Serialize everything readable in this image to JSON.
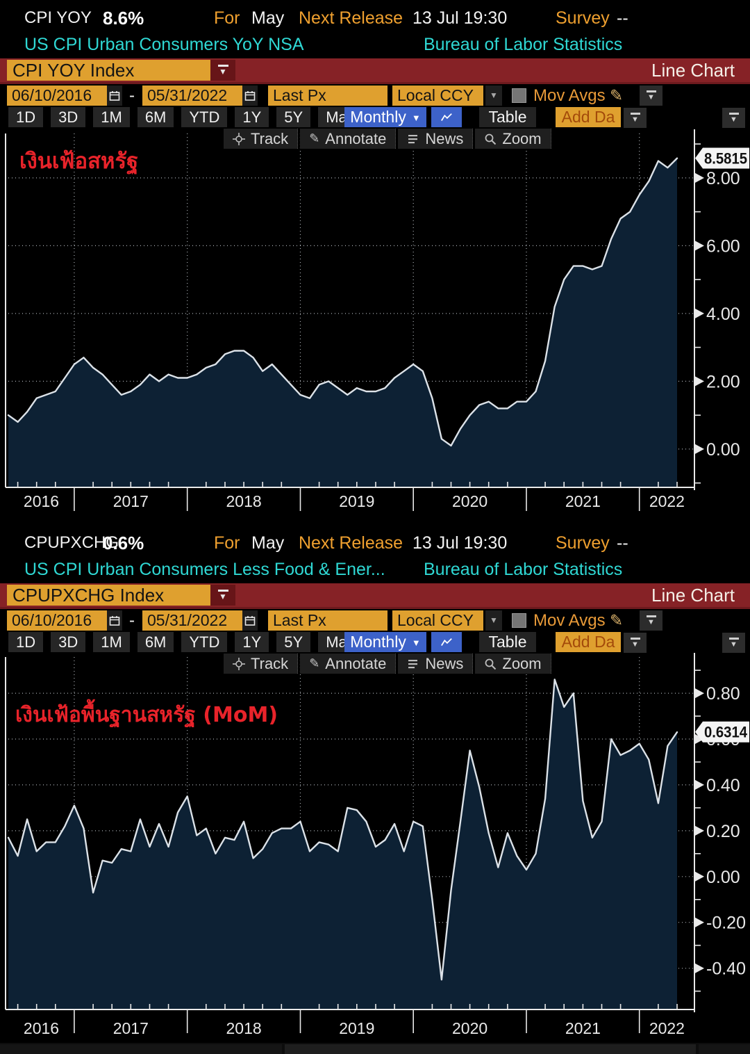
{
  "colors": {
    "amber": "#dfa02f",
    "maroon": "#862226",
    "blue": "#3d62c9",
    "cyan": "#2fd8d4",
    "label_orange": "#efa02f",
    "annotation_red": "#e8232a",
    "line": "#dce2e8",
    "fill": "#0d2134"
  },
  "panels": [
    {
      "header": {
        "ticker": "CPI YOY",
        "value": "8.6%",
        "for_label": "For",
        "period": "May",
        "release_label": "Next Release",
        "release_time": "13 Jul 19:30",
        "survey_label": "Survey",
        "survey_value": "--"
      },
      "subheader": {
        "description": "US CPI Urban Consumers YoY NSA",
        "source": "Bureau of Labor Statistics"
      },
      "title_bar": {
        "security": "CPI YOY Index",
        "view_label": "Line Chart"
      },
      "controls": {
        "date_from": "06/10/2016",
        "date_sep": "-",
        "date_to": "05/31/2022",
        "price_field": "Last Px",
        "currency": "Local CCY",
        "mov_avgs_label": "Mov Avgs",
        "ranges": [
          "1D",
          "3D",
          "1M",
          "6M",
          "YTD",
          "1Y",
          "5Y",
          "Max"
        ],
        "period_selector": "Monthly",
        "table_label": "Table",
        "add_data_label": "Add Da"
      },
      "tools": {
        "track": "Track",
        "annotate": "Annotate",
        "news": "News",
        "zoom": "Zoom"
      },
      "annotation": {
        "text": "เงินเฟ้อสหรัฐ",
        "color": "#e8232a"
      },
      "last_value_label": "8.5815"
    },
    {
      "header": {
        "ticker": "CPUPXCHG",
        "value": "0.6%",
        "for_label": "For",
        "period": "May",
        "release_label": "Next Release",
        "release_time": "13 Jul 19:30",
        "survey_label": "Survey",
        "survey_value": "--"
      },
      "subheader": {
        "description": "US CPI Urban Consumers Less Food & Ener...",
        "source": "Bureau of Labor Statistics"
      },
      "title_bar": {
        "security": "CPUPXCHG Index",
        "view_label": "Line Chart"
      },
      "controls": {
        "date_from": "06/10/2016",
        "date_sep": "-",
        "date_to": "05/31/2022",
        "price_field": "Last Px",
        "currency": "Local CCY",
        "mov_avgs_label": "Mov Avgs",
        "ranges": [
          "1D",
          "3D",
          "1M",
          "6M",
          "YTD",
          "1Y",
          "5Y",
          "Max"
        ],
        "period_selector": "Monthly",
        "table_label": "Table",
        "add_data_label": "Add Da"
      },
      "tools": {
        "track": "Track",
        "annotate": "Annotate",
        "news": "News",
        "zoom": "Zoom"
      },
      "annotation": {
        "text": "เงินเฟ้อพื้นฐานสหรัฐ (MoM)",
        "color": "#e8232a"
      },
      "last_value_label": "0.6314"
    }
  ],
  "chart_data": [
    {
      "type": "area",
      "title": "CPI YOY Index",
      "x_start": "2016-06",
      "freq": "monthly",
      "x_years": [
        "2016",
        "2017",
        "2018",
        "2019",
        "2020",
        "2021",
        "2022"
      ],
      "values": [
        1.0,
        0.8,
        1.1,
        1.5,
        1.6,
        1.7,
        2.1,
        2.5,
        2.7,
        2.4,
        2.2,
        1.9,
        1.6,
        1.7,
        1.9,
        2.2,
        2.0,
        2.2,
        2.1,
        2.1,
        2.2,
        2.4,
        2.5,
        2.8,
        2.9,
        2.9,
        2.7,
        2.3,
        2.5,
        2.2,
        1.9,
        1.6,
        1.5,
        1.9,
        2.0,
        1.8,
        1.6,
        1.8,
        1.7,
        1.7,
        1.8,
        2.1,
        2.3,
        2.5,
        2.3,
        1.5,
        0.3,
        0.1,
        0.6,
        1.0,
        1.3,
        1.4,
        1.2,
        1.2,
        1.4,
        1.4,
        1.7,
        2.6,
        4.2,
        5.0,
        5.4,
        5.4,
        5.3,
        5.4,
        6.2,
        6.8,
        7.0,
        7.5,
        7.9,
        8.5,
        8.3,
        8.58
      ],
      "ylim": [
        -1.13,
        9.31
      ],
      "yticks": [
        8,
        6,
        4,
        2,
        0
      ],
      "ytick_labels": [
        "8.00",
        "6.00",
        "4.00",
        "2.00",
        "0.00"
      ],
      "minor_tick_step": 1.0,
      "last_value": 8.5815,
      "last_label": "8.5815",
      "line_color": "#dce2e8",
      "fill_color": "#0d2134",
      "grid": "dotted",
      "legend": null,
      "xlabel": "",
      "ylabel": ""
    },
    {
      "type": "area",
      "title": "CPUPXCHG Index",
      "x_start": "2016-06",
      "freq": "monthly",
      "x_years": [
        "2016",
        "2017",
        "2018",
        "2019",
        "2020",
        "2021",
        "2022"
      ],
      "values": [
        0.17,
        0.09,
        0.25,
        0.11,
        0.15,
        0.15,
        0.22,
        0.31,
        0.21,
        -0.07,
        0.07,
        0.06,
        0.12,
        0.11,
        0.25,
        0.13,
        0.23,
        0.13,
        0.28,
        0.35,
        0.18,
        0.21,
        0.1,
        0.17,
        0.16,
        0.24,
        0.08,
        0.12,
        0.19,
        0.21,
        0.21,
        0.24,
        0.11,
        0.15,
        0.14,
        0.11,
        0.3,
        0.29,
        0.24,
        0.13,
        0.16,
        0.23,
        0.11,
        0.24,
        0.22,
        -0.1,
        -0.45,
        -0.06,
        0.24,
        0.55,
        0.39,
        0.19,
        0.04,
        0.19,
        0.09,
        0.03,
        0.1,
        0.34,
        0.86,
        0.74,
        0.8,
        0.33,
        0.17,
        0.24,
        0.6,
        0.53,
        0.55,
        0.58,
        0.51,
        0.32,
        0.57,
        0.63
      ],
      "ylim": [
        -0.58,
        0.958
      ],
      "yticks": [
        0.8,
        0.6,
        0.4,
        0.2,
        0.0,
        -0.2,
        -0.4
      ],
      "ytick_labels": [
        "0.80",
        "0.60",
        "0.40",
        "0.20",
        "0.00",
        "-0.20",
        "-0.40"
      ],
      "minor_tick_step": 0.1,
      "last_value": 0.6314,
      "last_label": "0.6314",
      "line_color": "#dce2e8",
      "fill_color": "#0d2134",
      "grid": "dotted",
      "legend": null,
      "xlabel": "",
      "ylabel": ""
    }
  ]
}
